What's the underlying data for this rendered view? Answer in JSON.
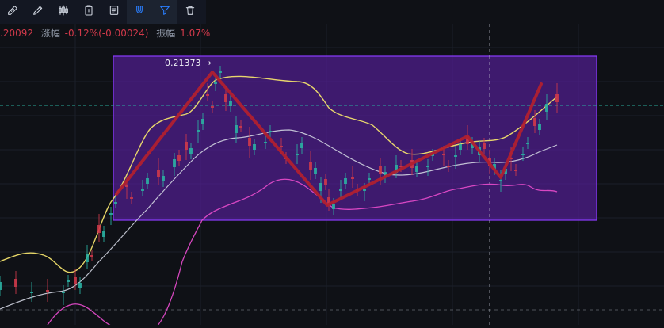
{
  "toolbar": {
    "tools": [
      {
        "name": "ruler-icon"
      },
      {
        "name": "pen-icon"
      },
      {
        "name": "candles-icon"
      },
      {
        "name": "clipboard-icon"
      },
      {
        "name": "note-icon"
      },
      {
        "name": "magnet-icon",
        "active": true
      },
      {
        "name": "filter-icon",
        "active": true
      },
      {
        "name": "trash-icon"
      }
    ]
  },
  "stats": {
    "price": ".20092",
    "change_label": "涨幅",
    "change_value": "-0.12%(-0.00024)",
    "amp_label": "振幅",
    "amp_value": "1.07%"
  },
  "annotation": {
    "high_label": "0.21373",
    "arrow": "→"
  },
  "colors": {
    "background": "#0f1116",
    "zigzag": "#b0202f",
    "box_fill": "#5c20a4",
    "box_border": "#8b3cff",
    "upper_band": "#f1e06c",
    "middle_band": "#d0d4e0",
    "lower_band": "#e04ac7",
    "candle_up": "#2bb3a3",
    "candle_down": "#d0394a",
    "dashed_line": "#2bb3a3"
  }
}
